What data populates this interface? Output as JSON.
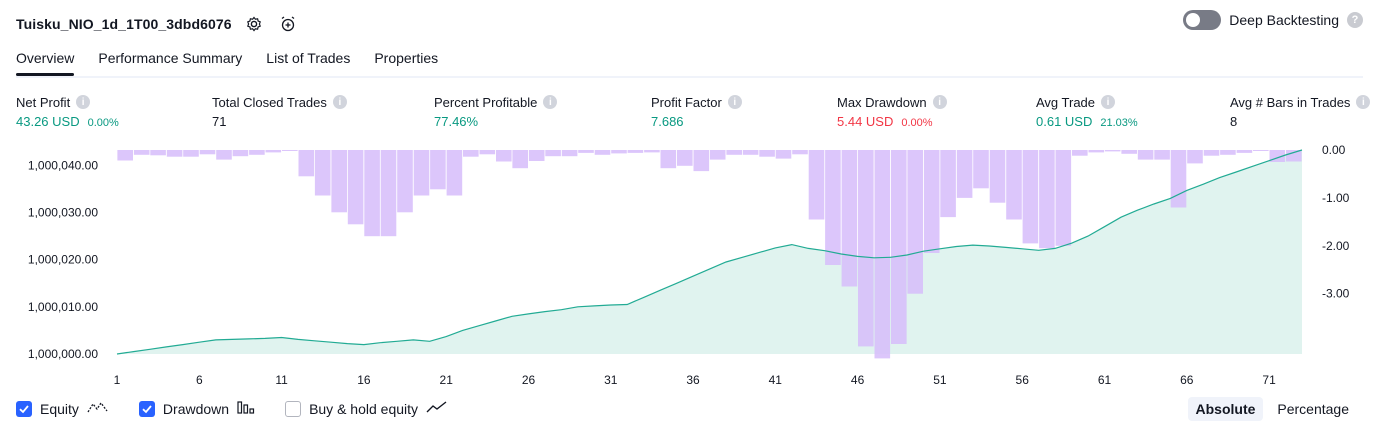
{
  "header": {
    "title": "Tuisku_NIO_1d_1T00_3dbd6076",
    "deep_backtesting_label": "Deep Backtesting",
    "deep_backtesting_on": false
  },
  "tabs": [
    {
      "label": "Overview",
      "active": true
    },
    {
      "label": "Performance Summary",
      "active": false
    },
    {
      "label": "List of Trades",
      "active": false
    },
    {
      "label": "Properties",
      "active": false
    }
  ],
  "metrics": [
    {
      "label": "Net Profit",
      "value": "43.26 USD",
      "pct": "0.00%",
      "tone": "green"
    },
    {
      "label": "Total Closed Trades",
      "value": "71",
      "pct": "",
      "tone": "neutral"
    },
    {
      "label": "Percent Profitable",
      "value": "77.46%",
      "pct": "",
      "tone": "green"
    },
    {
      "label": "Profit Factor",
      "value": "7.686",
      "pct": "",
      "tone": "green"
    },
    {
      "label": "Max Drawdown",
      "value": "5.44 USD",
      "pct": "0.00%",
      "tone": "red"
    },
    {
      "label": "Avg Trade",
      "value": "0.61 USD",
      "pct": "21.03%",
      "tone": "green"
    },
    {
      "label": "Avg # Bars in Trades",
      "value": "8",
      "pct": "",
      "tone": "neutral"
    }
  ],
  "legend": {
    "equity": {
      "label": "Equity",
      "checked": true
    },
    "drawdown": {
      "label": "Drawdown",
      "checked": true
    },
    "buyhold": {
      "label": "Buy & hold equity",
      "checked": false
    }
  },
  "modes": {
    "absolute": "Absolute",
    "percentage": "Percentage",
    "selected": "absolute"
  },
  "colors": {
    "equity_line": "#22ab94",
    "equity_fill": "#e0f3ef",
    "drawdown_bar": "#d6bcfa",
    "accent": "#2962ff"
  },
  "chart_data": {
    "type": "area",
    "x_ticks": [
      "1",
      "6",
      "11",
      "16",
      "21",
      "26",
      "31",
      "36",
      "41",
      "46",
      "51",
      "56",
      "61",
      "66",
      "71"
    ],
    "y_left_ticks": [
      "1,000,040.00",
      "1,000,030.00",
      "1,000,020.00",
      "1,000,010.00",
      "1,000,000.00"
    ],
    "y_right_ticks": [
      "0.00",
      "-1.00",
      "-2.00",
      "-3.00"
    ],
    "ylim_left": [
      1000000,
      1000043.26
    ],
    "ylim_right": [
      -4.3,
      0
    ],
    "series": [
      {
        "role": "equity",
        "axis": "left",
        "values": [
          1000000,
          1000000.5,
          1000001,
          1000001.5,
          1000002,
          1000002.5,
          1000003,
          1000003.1,
          1000003.2,
          1000003.3,
          1000003.5,
          1000003.1,
          1000002.8,
          1000002.5,
          1000002.2,
          1000002,
          1000002.4,
          1000002.7,
          1000003,
          1000002.7,
          1000003.7,
          1000005,
          1000006,
          1000007,
          1000008,
          1000008.5,
          1000009,
          1000009.4,
          1000010,
          1000010.2,
          1000010.4,
          1000010.5,
          1000012,
          1000013.5,
          1000015,
          1000016.5,
          1000018,
          1000019.5,
          1000020.5,
          1000021.5,
          1000022.5,
          1000023.2,
          1000022.4,
          1000021.9,
          1000021.2,
          1000020.7,
          1000020.4,
          1000020.5,
          1000021,
          1000021.8,
          1000022.3,
          1000022.8,
          1000023.1,
          1000022.9,
          1000022.6,
          1000022.3,
          1000022,
          1000022.4,
          1000023.5,
          1000025,
          1000027,
          1000029,
          1000030.5,
          1000031.8,
          1000033,
          1000034.7,
          1000036,
          1000037.4,
          1000038.6,
          1000039.8,
          1000041,
          1000042.2,
          1000043.26
        ]
      },
      {
        "role": "drawdown",
        "axis": "right",
        "values": [
          -0.22,
          -0.1,
          -0.11,
          -0.14,
          -0.14,
          -0.09,
          -0.2,
          -0.13,
          -0.1,
          -0.05,
          -0.01,
          -0.55,
          -0.95,
          -1.3,
          -1.55,
          -1.8,
          -1.8,
          -1.3,
          -0.95,
          -0.82,
          -0.95,
          -0.14,
          -0.09,
          -0.24,
          -0.38,
          -0.23,
          -0.13,
          -0.13,
          -0.06,
          -0.1,
          -0.07,
          -0.06,
          -0.05,
          -0.38,
          -0.33,
          -0.44,
          -0.2,
          -0.1,
          -0.1,
          -0.14,
          -0.18,
          -0.09,
          -1.45,
          -2.4,
          -2.85,
          -4.1,
          -4.35,
          -4.05,
          -3.0,
          -2.15,
          -1.4,
          -1.0,
          -0.8,
          -1.1,
          -1.45,
          -1.95,
          -2.05,
          -2.0,
          -0.12,
          -0.05,
          -0.03,
          -0.08,
          -0.2,
          -0.2,
          -1.2,
          -0.28,
          -0.12,
          -0.1,
          -0.06,
          -0.02,
          -0.25,
          -0.24
        ]
      }
    ]
  }
}
